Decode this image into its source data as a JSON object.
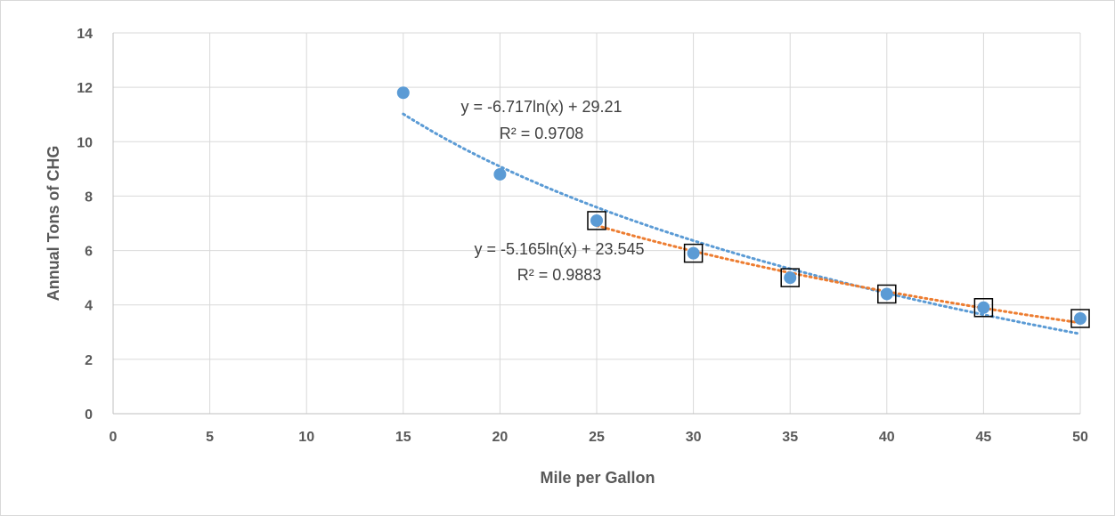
{
  "chart_data": {
    "type": "scatter",
    "title": "",
    "xlabel": "Mile per Gallon",
    "ylabel": "Annual Tons of CHG",
    "xlim": [
      0,
      50
    ],
    "ylim": [
      0,
      14
    ],
    "xticks": [
      0,
      5,
      10,
      15,
      20,
      25,
      30,
      35,
      40,
      45,
      50
    ],
    "yticks": [
      0,
      2,
      4,
      6,
      8,
      10,
      12,
      14
    ],
    "grid": true,
    "legend": "none",
    "series": [
      {
        "color": "#5b9bd5",
        "points": [
          {
            "x": 15,
            "y": 11.8
          },
          {
            "x": 20,
            "y": 8.8
          },
          {
            "x": 25,
            "y": 7.1
          },
          {
            "x": 30,
            "y": 5.9
          },
          {
            "x": 35,
            "y": 5.0
          },
          {
            "x": 40,
            "y": 4.4
          },
          {
            "x": 45,
            "y": 3.9
          },
          {
            "x": 50,
            "y": 3.5
          }
        ]
      }
    ],
    "highlighted_points": [
      {
        "x": 25,
        "y": 7.1
      },
      {
        "x": 30,
        "y": 5.9
      },
      {
        "x": 35,
        "y": 5.0
      },
      {
        "x": 40,
        "y": 4.4
      },
      {
        "x": 45,
        "y": 3.9
      },
      {
        "x": 50,
        "y": 3.5
      }
    ],
    "trendlines": [
      {
        "kind": "logarithmic",
        "a": -6.717,
        "b": 29.21,
        "x_range": [
          15,
          50
        ],
        "color": "#5b9bd5",
        "equation": "y = -6.717ln(x) + 29.21",
        "r2": "R² = 0.9708"
      },
      {
        "kind": "logarithmic",
        "a": -5.165,
        "b": 23.545,
        "x_range": [
          25,
          50
        ],
        "color": "#ed7d31",
        "equation": "y = -5.165ln(x) + 23.545",
        "r2": "R² = 0.9883"
      }
    ]
  }
}
